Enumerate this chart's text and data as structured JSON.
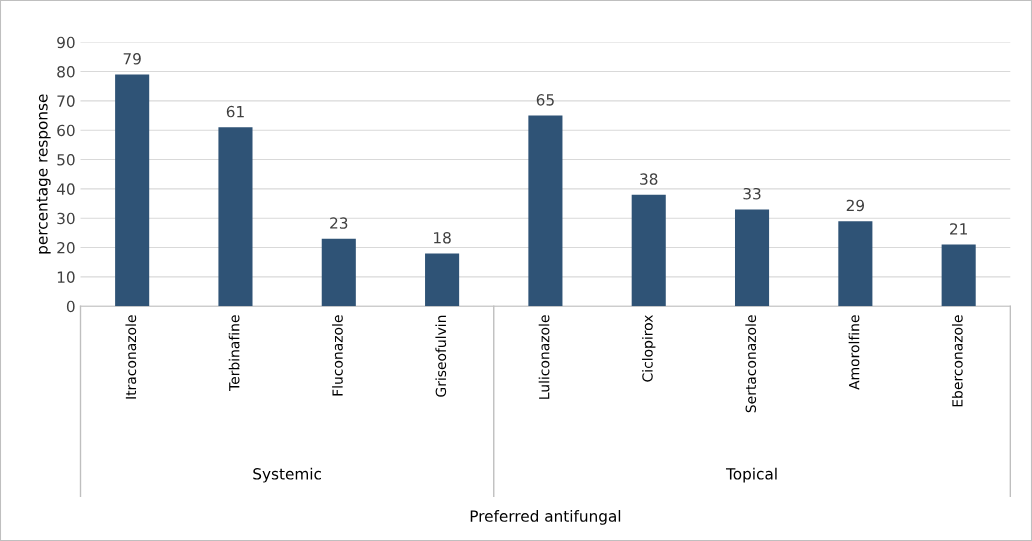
{
  "chart_data": {
    "type": "bar",
    "ylabel": "percentage response",
    "categories": [
      "Itraconazole",
      "Terbinafine",
      "Fluconazole",
      "Griseofulvin",
      "Luliconazole",
      "Ciclopirox",
      "Sertaconazole",
      "Amorolfine",
      "Eberconazole"
    ],
    "values": [
      79,
      61,
      23,
      18,
      65,
      38,
      33,
      29,
      21
    ],
    "color": "#2f5376",
    "ylim": [
      0,
      90
    ],
    "yticks": [
      0,
      10,
      20,
      30,
      40,
      50,
      60,
      70,
      80,
      90
    ],
    "grid": "y",
    "data_labels": true,
    "annotations": [
      "Systemic",
      "Topical",
      "Preferred antifungal"
    ]
  }
}
